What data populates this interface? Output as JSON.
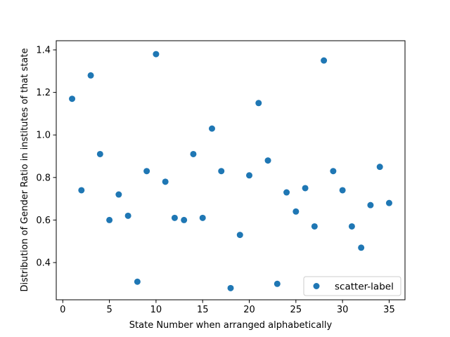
{
  "chart_data": {
    "type": "scatter",
    "title": "",
    "xlabel": "State Number when arranged alphabetically",
    "ylabel": "Distribution of Gender Ratio in institutes of that state",
    "xlim": [
      -0.7,
      36.7
    ],
    "ylim": [
      0.225,
      1.443
    ],
    "x_ticks": [
      0,
      5,
      10,
      15,
      20,
      25,
      30,
      35
    ],
    "x_tick_labels": [
      "0",
      "5",
      "10",
      "15",
      "20",
      "25",
      "30",
      "35"
    ],
    "y_ticks": [
      0.4,
      0.6,
      0.8,
      1.0,
      1.2,
      1.4
    ],
    "y_tick_labels": [
      "0.4",
      "0.6",
      "0.8",
      "1.0",
      "1.2",
      "1.4"
    ],
    "grid": false,
    "legend_position": "lower-right",
    "marker_color": "#1f77b4",
    "series": [
      {
        "name": "scatter-label",
        "x": [
          1,
          2,
          3,
          4,
          5,
          6,
          7,
          8,
          9,
          10,
          11,
          12,
          13,
          14,
          15,
          16,
          17,
          18,
          19,
          20,
          21,
          22,
          23,
          24,
          25,
          26,
          27,
          28,
          29,
          30,
          31,
          32,
          33,
          34,
          35
        ],
        "y": [
          1.17,
          0.74,
          1.28,
          0.91,
          0.6,
          0.72,
          0.62,
          0.31,
          0.83,
          1.38,
          0.78,
          0.61,
          0.6,
          0.91,
          0.61,
          1.03,
          0.83,
          0.28,
          0.53,
          0.81,
          1.15,
          0.88,
          0.3,
          0.73,
          0.64,
          0.75,
          0.57,
          1.35,
          0.83,
          0.74,
          0.57,
          0.47,
          0.67,
          0.85,
          0.68
        ]
      }
    ]
  }
}
